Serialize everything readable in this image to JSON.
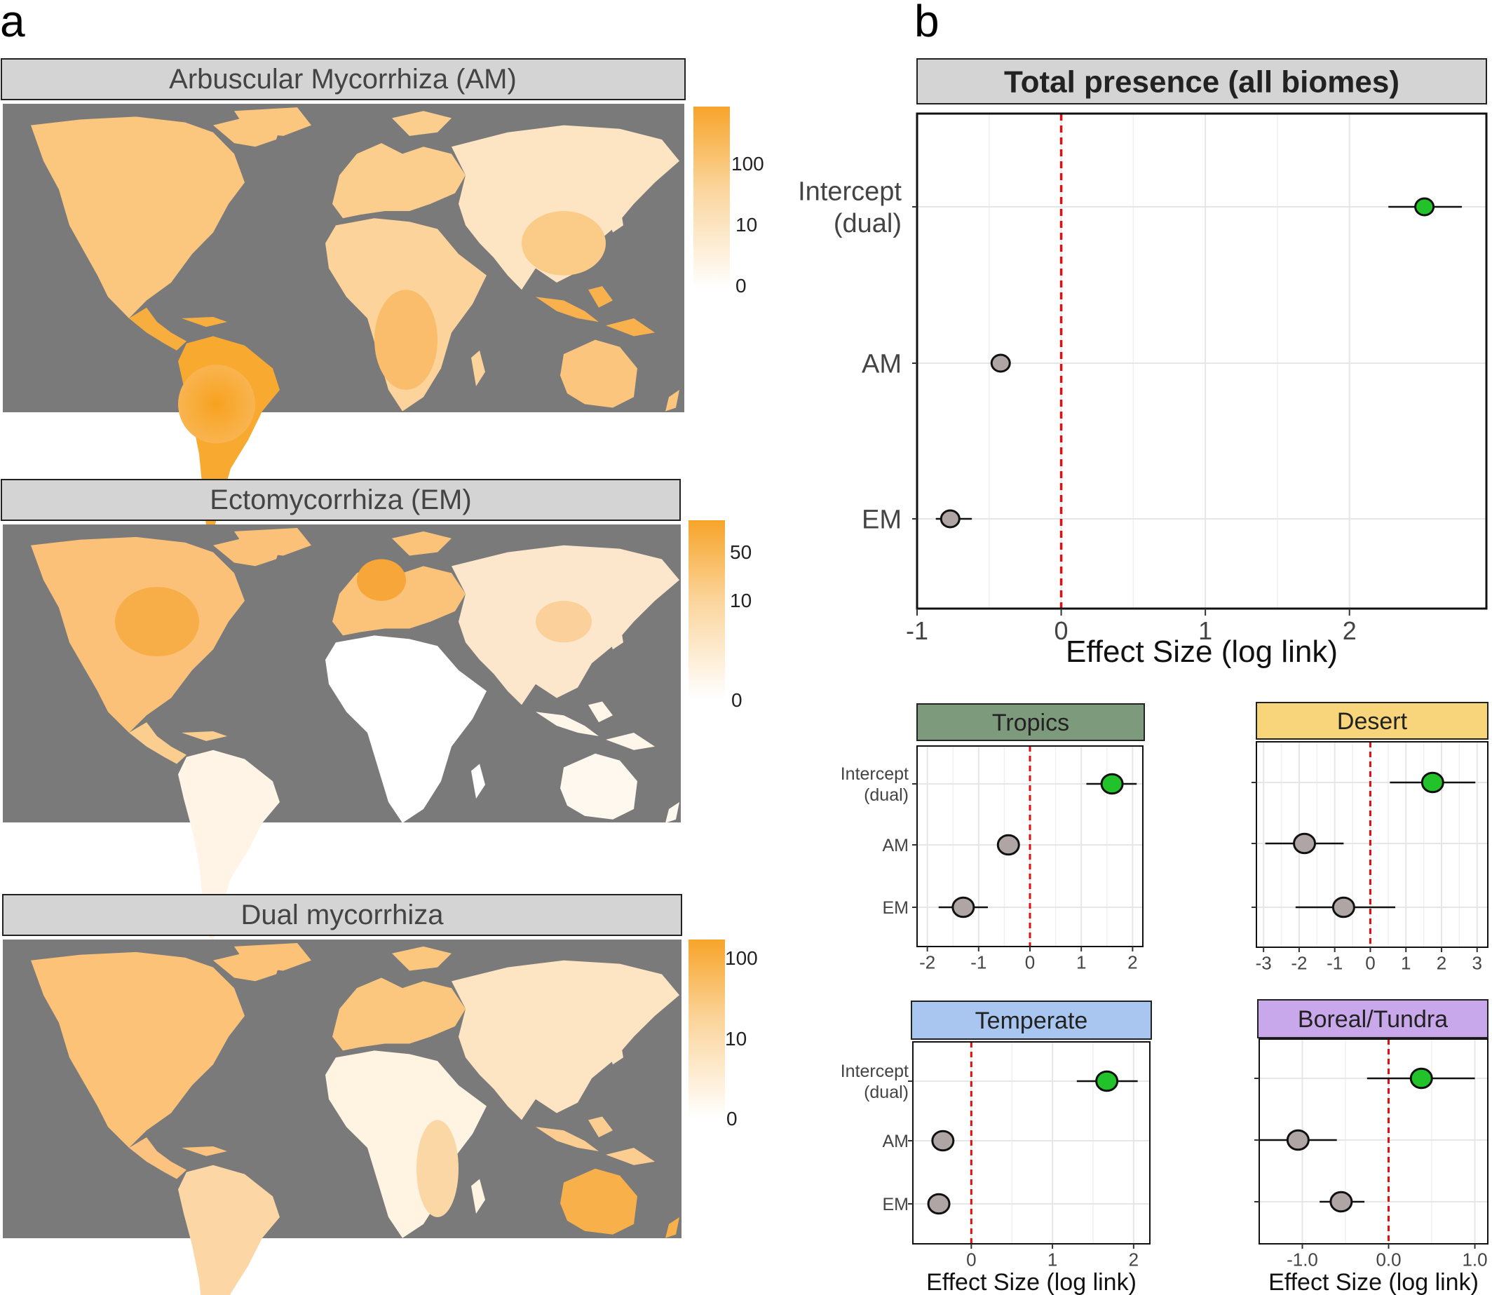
{
  "panel_labels": {
    "a": "a",
    "b": "b"
  },
  "colors": {
    "ocean": "#7a7a7a",
    "land_low": "#ffffff",
    "land_high": "#f7a42a",
    "strip_grey": "#d4d4d4",
    "strip_tropics": "#7e9a7c",
    "strip_desert": "#f8d57a",
    "strip_temperate": "#a9c6f0",
    "strip_boreal": "#c8a7ea",
    "intercept_point": "#22c32a",
    "other_point": "#b0a5a5",
    "zero_line": "#e01010"
  },
  "maps": [
    {
      "title": "Arbuscular Mycorrhiza (AM)",
      "legend_ticks": [
        "100",
        "10",
        "0"
      ]
    },
    {
      "title": "Ectomycorrhiza (EM)",
      "legend_ticks": [
        "50",
        "10",
        "0"
      ]
    },
    {
      "title": "Dual mycorrhiza",
      "legend_ticks": [
        "100",
        "10",
        "0"
      ]
    }
  ],
  "chart_data": [
    {
      "type": "scatter",
      "title": "Total presence (all biomes)",
      "xlabel": "Effect Size (log link)",
      "xlim": [
        -1,
        2.95
      ],
      "xticks": [
        -1,
        0,
        1,
        2
      ],
      "xtick_labels": [
        "-1",
        "0",
        "1",
        "2"
      ],
      "categories": [
        "Intercept\n(dual)",
        "AM",
        "EM"
      ],
      "estimates": [
        2.52,
        -0.42,
        -0.77
      ],
      "ci_low": [
        2.27,
        -0.44,
        -0.87
      ],
      "ci_high": [
        2.78,
        -0.4,
        -0.62
      ]
    },
    {
      "type": "scatter",
      "title": "Tropics",
      "xlabel": "",
      "xlim": [
        -2.2,
        2.2
      ],
      "xticks": [
        -2,
        -1,
        0,
        1,
        2
      ],
      "xtick_labels": [
        "-2",
        "-1",
        "0",
        "1",
        "2"
      ],
      "categories": [
        "Intercept\n(dual)",
        "AM",
        "EM"
      ],
      "estimates": [
        1.6,
        -0.42,
        -1.3
      ],
      "ci_low": [
        1.1,
        -0.45,
        -1.78
      ],
      "ci_high": [
        2.08,
        -0.39,
        -0.82
      ]
    },
    {
      "type": "scatter",
      "title": "Desert",
      "xlabel": "",
      "xlim": [
        -3.2,
        3.3
      ],
      "xticks": [
        -3,
        -2,
        -1,
        0,
        1,
        2,
        3
      ],
      "xtick_labels": [
        "-3",
        "-2",
        "-1",
        "0",
        "1",
        "2",
        "3"
      ],
      "categories": [
        "Intercept\n(dual)",
        "AM",
        "EM"
      ],
      "estimates": [
        1.75,
        -1.85,
        -0.75
      ],
      "ci_low": [
        0.55,
        -2.95,
        -2.1
      ],
      "ci_high": [
        2.95,
        -0.75,
        0.7
      ]
    },
    {
      "type": "scatter",
      "title": "Temperate",
      "xlabel": "Effect Size (log link)",
      "xlim": [
        -0.72,
        2.2
      ],
      "xticks": [
        0,
        1,
        2
      ],
      "xtick_labels": [
        "0",
        "1",
        "2"
      ],
      "categories": [
        "Intercept\n(dual)",
        "AM",
        "EM"
      ],
      "estimates": [
        1.67,
        -0.35,
        -0.4
      ],
      "ci_low": [
        1.3,
        -0.38,
        -0.43
      ],
      "ci_high": [
        2.05,
        -0.32,
        -0.37
      ]
    },
    {
      "type": "scatter",
      "title": "Boreal/Tundra",
      "xlabel": "Effect Size (log link)",
      "xlim": [
        -1.5,
        1.15
      ],
      "xticks": [
        -1.0,
        0.0,
        1.0
      ],
      "xtick_labels": [
        "-1.0",
        "0.0",
        "1.0"
      ],
      "categories": [
        "Intercept\n(dual)",
        "AM",
        "EM"
      ],
      "estimates": [
        0.38,
        -1.05,
        -0.55
      ],
      "ci_low": [
        -0.25,
        -1.5,
        -0.8
      ],
      "ci_high": [
        1.0,
        -0.6,
        -0.28
      ]
    }
  ]
}
